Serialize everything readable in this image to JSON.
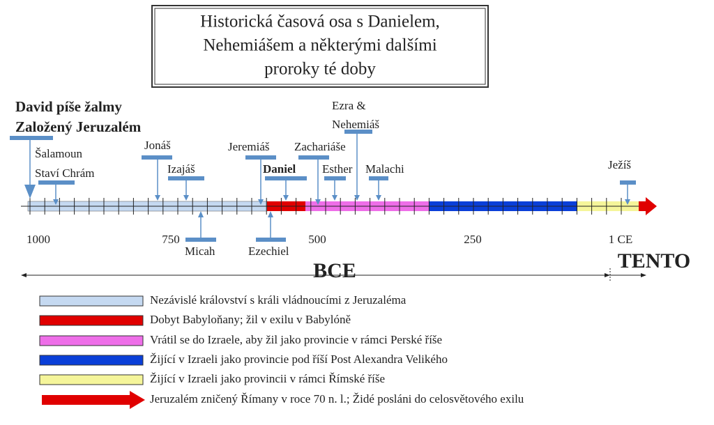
{
  "header": {
    "title": [
      "Historická časová osa s Danielem,",
      "Nehemiášem a některými dalšími",
      "proroky té doby"
    ]
  },
  "events": [
    {
      "lines": [
        "David píše žalmy",
        "Založený Jeruzalém"
      ]
    },
    {
      "lines": [
        "Šalamoun",
        "Staví Chrám"
      ]
    },
    {
      "lines": [
        "Jonáš"
      ]
    },
    {
      "lines": [
        "Izajáš"
      ]
    },
    {
      "lines": [
        "Jeremiáš"
      ]
    },
    {
      "lines": [
        "Daniel"
      ]
    },
    {
      "lines": [
        "Zachariáše"
      ]
    },
    {
      "lines": [
        "Esther"
      ]
    },
    {
      "lines": [
        "Ezra &",
        "Nehemiáš"
      ]
    },
    {
      "lines": [
        "Malachi"
      ]
    },
    {
      "lines": [
        "Ježíš"
      ]
    },
    {
      "lines": [
        "Micah"
      ]
    },
    {
      "lines": [
        "Ezechiel"
      ]
    }
  ],
  "axis": {
    "labels": [
      "1000",
      "750",
      "500",
      "250",
      "1 CE"
    ],
    "bce": "BCE",
    "now": "TENTO"
  },
  "legend": [
    "Nezávislé království s králi vládnoucími z Jeruzaléma",
    "Dobyt Babyloňany; žil v exilu v Babylóně",
    "Vrátil se do Izraele, aby žil jako provincie v rámci Perské říše",
    "Žijící v Izraeli jako provincie pod říší Post Alexandra Velikého",
    "Žijící v Izraeli jako provincii v rámci Římské říše",
    "Jeruzalém zničený Římany v roce 70 n. l.; Židé posláni do celosvětového exilu"
  ]
}
